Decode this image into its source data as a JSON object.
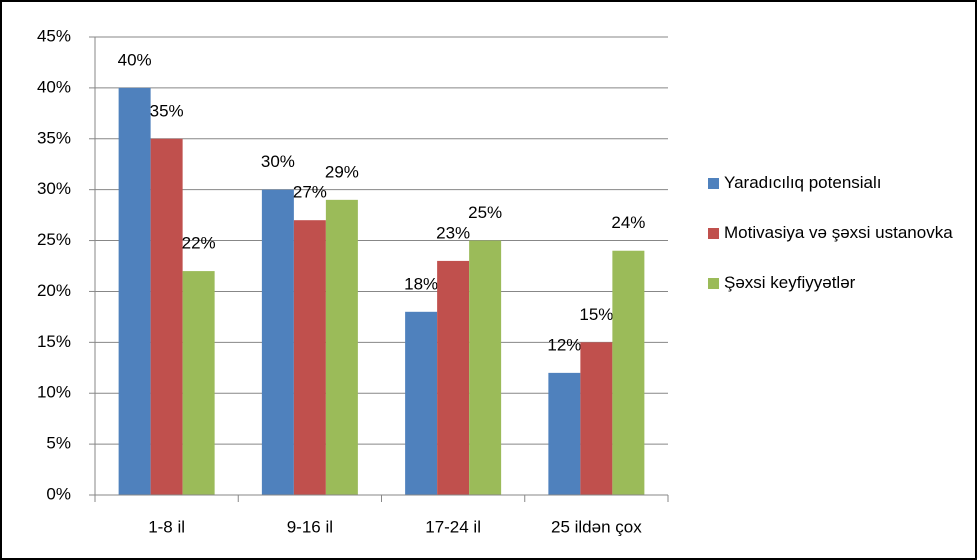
{
  "chart_data": {
    "type": "bar",
    "categories": [
      "1-8 il",
      "9-16 il",
      "17-24 il",
      "25 ildən çox"
    ],
    "series": [
      {
        "name": "Yaradıcılıq potensialı",
        "color": "#4f81bd",
        "values": [
          40,
          30,
          18,
          12
        ],
        "value_labels": [
          "40%",
          "30%",
          "18%",
          "12%"
        ]
      },
      {
        "name": "Motivasiya və şəxsi ustanovka",
        "color": "#c0504d",
        "values": [
          35,
          27,
          23,
          15
        ],
        "value_labels": [
          "35%",
          "27%",
          "23%",
          "15%"
        ]
      },
      {
        "name": "Şəxsi keyfiyyətlər",
        "color": "#9bbb59",
        "values": [
          22,
          29,
          25,
          24
        ],
        "value_labels": [
          "22%",
          "29%",
          "25%",
          "24%"
        ]
      }
    ],
    "ylim": [
      0,
      45
    ],
    "yticks": [
      {
        "value": 0,
        "label": "0%"
      },
      {
        "value": 5,
        "label": "5%"
      },
      {
        "value": 10,
        "label": "10%"
      },
      {
        "value": 15,
        "label": "15%"
      },
      {
        "value": 20,
        "label": "20%"
      },
      {
        "value": 25,
        "label": "25%"
      },
      {
        "value": 30,
        "label": "30%"
      },
      {
        "value": 35,
        "label": "35%"
      },
      {
        "value": 40,
        "label": "40%"
      },
      {
        "value": 45,
        "label": "45%"
      }
    ],
    "grid": true,
    "legend": "right"
  }
}
